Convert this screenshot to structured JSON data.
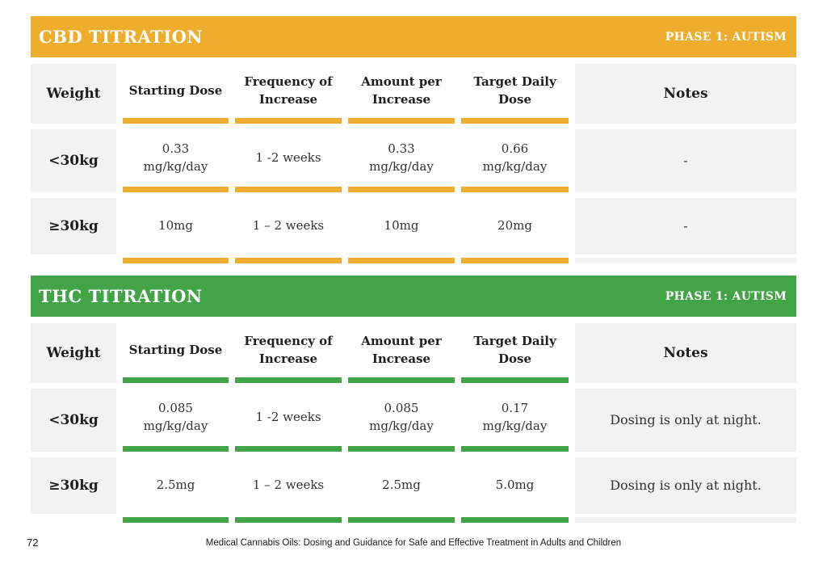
{
  "page": {
    "number": "72",
    "footer": "Medical Cannabis Oils: Dosing and Guidance for Safe and Effective Treatment in Adults and Children"
  },
  "colors": {
    "cbd_accent": "#EEAD2D",
    "thc_accent": "#43A447",
    "cell_gray": "#F2F2F2"
  },
  "tables": [
    {
      "title": "CBD TITRATION",
      "phase": "PHASE 1: AUTISM",
      "headers": [
        "Weight",
        "Starting Dose",
        "Frequency of\nIncrease",
        "Amount per\nIncrease",
        "Target Daily\nDose",
        "Notes"
      ],
      "rows": [
        [
          "<30kg",
          "0.33\nmg/kg/day",
          "1 -2 weeks",
          "0.33\nmg/kg/day",
          "0.66\nmg/kg/day",
          "-"
        ],
        [
          "≥30kg",
          "10mg",
          "1 – 2 weeks",
          "10mg",
          "20mg",
          "-"
        ]
      ]
    },
    {
      "title": "THC TITRATION",
      "phase": "PHASE 1: AUTISM",
      "headers": [
        "Weight",
        "Starting Dose",
        "Frequency of\nIncrease",
        "Amount per\nIncrease",
        "Target Daily\nDose",
        "Notes"
      ],
      "rows": [
        [
          "<30kg",
          "0.085\nmg/kg/day",
          "1 -2 weeks",
          "0.085\nmg/kg/day",
          "0.17\nmg/kg/day",
          "Dosing is only at night."
        ],
        [
          "≥30kg",
          "2.5mg",
          "1 – 2 weeks",
          "2.5mg",
          "5.0mg",
          "Dosing is only at night."
        ]
      ]
    }
  ]
}
